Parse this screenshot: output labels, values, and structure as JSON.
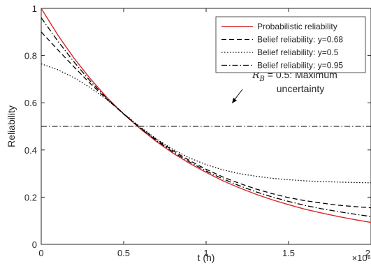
{
  "chart_data": {
    "type": "line",
    "title": "",
    "xlabel": "t (h)",
    "ylabel": "Reliability",
    "x_multiplier_label": "×10⁶",
    "xlim": [
      0,
      2000000
    ],
    "ylim": [
      0,
      1
    ],
    "x_ticks": [
      0,
      500000,
      1000000,
      1500000,
      2000000
    ],
    "x_tick_labels": [
      "0",
      "0.5",
      "1",
      "1.5",
      "2"
    ],
    "y_ticks": [
      0,
      0.2,
      0.4,
      0.6,
      0.8,
      1
    ],
    "y_tick_labels": [
      "0",
      "0.2",
      "0.4",
      "0.6",
      "0.8",
      "1"
    ],
    "grid": false,
    "legend_position": "top-right",
    "x": [
      0,
      100000,
      200000,
      300000,
      400000,
      500000,
      600000,
      700000,
      800000,
      900000,
      1000000,
      1100000,
      1200000,
      1300000,
      1400000,
      1500000,
      1600000,
      1700000,
      1800000,
      1900000,
      2000000
    ],
    "series": [
      {
        "name": "Probabilistic reliability",
        "color": "#d62728",
        "style": "solid",
        "values": [
          1.0,
          0.888,
          0.788,
          0.7,
          0.621,
          0.552,
          0.49,
          0.435,
          0.386,
          0.343,
          0.305,
          0.27,
          0.24,
          0.213,
          0.189,
          0.168,
          0.149,
          0.133,
          0.118,
          0.105,
          0.093
        ]
      },
      {
        "name": "Belief reliability: y=0.68",
        "color": "#000000",
        "style": "dashed",
        "values": [
          0.9,
          0.825,
          0.751,
          0.68,
          0.614,
          0.552,
          0.495,
          0.443,
          0.397,
          0.355,
          0.318,
          0.286,
          0.259,
          0.235,
          0.215,
          0.198,
          0.185,
          0.175,
          0.166,
          0.16,
          0.155
        ]
      },
      {
        "name": "Belief reliability: y=0.5",
        "color": "#000000",
        "style": "dotted",
        "values": [
          0.765,
          0.74,
          0.706,
          0.663,
          0.612,
          0.555,
          0.498,
          0.446,
          0.402,
          0.366,
          0.338,
          0.316,
          0.3,
          0.289,
          0.28,
          0.274,
          0.269,
          0.266,
          0.264,
          0.262,
          0.261
        ]
      },
      {
        "name": "Belief reliability: y=0.95",
        "color": "#000000",
        "style": "dashdot",
        "values": [
          0.96,
          0.862,
          0.772,
          0.69,
          0.617,
          0.553,
          0.493,
          0.439,
          0.391,
          0.349,
          0.311,
          0.278,
          0.249,
          0.223,
          0.201,
          0.182,
          0.165,
          0.151,
          0.139,
          0.128,
          0.118
        ]
      }
    ],
    "reference_line": {
      "y": 0.5,
      "style": "dashdot",
      "color": "#000000"
    },
    "annotation": {
      "symbol": "R",
      "subscript": "B",
      "text_line1": " = 0.5: Maximum",
      "text_line2": "uncertainty"
    }
  }
}
